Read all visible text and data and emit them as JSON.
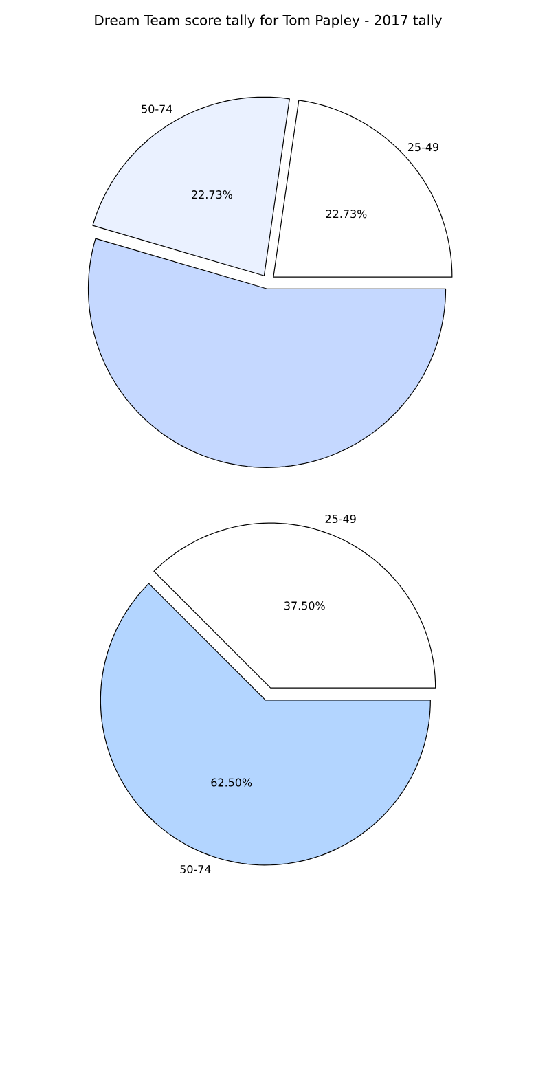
{
  "chart_data": [
    {
      "type": "pie",
      "title": "Dream Team score tally for Tom Papley - 2017 tally",
      "categories": [
        "25-49",
        "50-74",
        null
      ],
      "values": [
        22.73,
        22.73,
        54.54
      ],
      "colors": [
        "#ffffff",
        "#eaf1ff",
        "#c5d8ff"
      ],
      "value_labels": [
        "22.73%",
        "22.73%",
        null
      ]
    },
    {
      "type": "pie",
      "categories": [
        "25-49",
        "50-74"
      ],
      "values": [
        37.5,
        62.5
      ],
      "colors": [
        "#ffffff",
        "#b3d5ff"
      ],
      "value_labels": [
        "37.50%",
        "62.50%"
      ]
    }
  ]
}
